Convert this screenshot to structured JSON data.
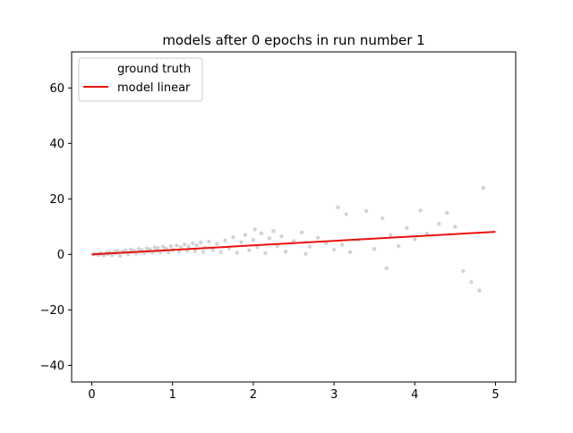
{
  "chart_data": {
    "type": "scatter",
    "title": "models after 0 epochs in run number 1",
    "xlabel": "",
    "ylabel": "",
    "xlim": [
      -0.25,
      5.25
    ],
    "ylim": [
      -46,
      73
    ],
    "xticks": [
      0,
      1,
      2,
      3,
      4,
      5
    ],
    "yticks": [
      -40,
      -20,
      0,
      20,
      40,
      60
    ],
    "grid": false,
    "legend": {
      "placement": "top-left",
      "entries": [
        "ground truth",
        "model linear"
      ]
    },
    "series": [
      {
        "name": "ground truth",
        "kind": "scatter",
        "color": "#c8c8c8",
        "points": [
          [
            0.02,
            0.0
          ],
          [
            0.05,
            0.3
          ],
          [
            0.08,
            -0.2
          ],
          [
            0.1,
            0.5
          ],
          [
            0.12,
            0.2
          ],
          [
            0.15,
            -0.4
          ],
          [
            0.18,
            0.6
          ],
          [
            0.2,
            0.1
          ],
          [
            0.22,
            0.9
          ],
          [
            0.25,
            -0.3
          ],
          [
            0.28,
            1.0
          ],
          [
            0.3,
            0.4
          ],
          [
            0.32,
            1.3
          ],
          [
            0.35,
            -0.5
          ],
          [
            0.38,
            1.1
          ],
          [
            0.4,
            0.6
          ],
          [
            0.42,
            1.5
          ],
          [
            0.45,
            0.0
          ],
          [
            0.48,
            1.8
          ],
          [
            0.5,
            0.8
          ],
          [
            0.52,
            1.4
          ],
          [
            0.55,
            0.3
          ],
          [
            0.58,
            2.0
          ],
          [
            0.6,
            0.9
          ],
          [
            0.62,
            1.6
          ],
          [
            0.65,
            0.5
          ],
          [
            0.68,
            2.2
          ],
          [
            0.7,
            1.1
          ],
          [
            0.72,
            1.9
          ],
          [
            0.75,
            0.6
          ],
          [
            0.78,
            2.5
          ],
          [
            0.8,
            1.2
          ],
          [
            0.82,
            2.3
          ],
          [
            0.85,
            0.8
          ],
          [
            0.88,
            2.8
          ],
          [
            0.9,
            1.4
          ],
          [
            0.92,
            2.1
          ],
          [
            0.95,
            0.7
          ],
          [
            0.98,
            3.0
          ],
          [
            1.0,
            1.6
          ],
          [
            1.05,
            3.2
          ],
          [
            1.08,
            1.0
          ],
          [
            1.1,
            2.6
          ],
          [
            1.15,
            3.6
          ],
          [
            1.18,
            1.4
          ],
          [
            1.2,
            2.9
          ],
          [
            1.25,
            4.0
          ],
          [
            1.28,
            1.2
          ],
          [
            1.3,
            3.3
          ],
          [
            1.35,
            4.3
          ],
          [
            1.38,
            0.9
          ],
          [
            1.4,
            2.5
          ],
          [
            1.45,
            4.6
          ],
          [
            1.5,
            1.6
          ],
          [
            1.55,
            3.8
          ],
          [
            1.6,
            0.8
          ],
          [
            1.65,
            5.0
          ],
          [
            1.7,
            2.2
          ],
          [
            1.75,
            6.2
          ],
          [
            1.8,
            0.6
          ],
          [
            1.85,
            4.4
          ],
          [
            1.9,
            7.0
          ],
          [
            1.95,
            1.5
          ],
          [
            2.0,
            5.2
          ],
          [
            2.02,
            9.0
          ],
          [
            2.05,
            2.6
          ],
          [
            2.1,
            7.6
          ],
          [
            2.15,
            0.5
          ],
          [
            2.2,
            5.8
          ],
          [
            2.25,
            8.4
          ],
          [
            2.3,
            3.0
          ],
          [
            2.35,
            6.5
          ],
          [
            2.4,
            1.0
          ],
          [
            2.5,
            4.8
          ],
          [
            2.6,
            7.9
          ],
          [
            2.65,
            0.2
          ],
          [
            2.7,
            2.8
          ],
          [
            2.8,
            6.0
          ],
          [
            2.9,
            4.0
          ],
          [
            3.0,
            1.8
          ],
          [
            3.05,
            17.0
          ],
          [
            3.1,
            3.5
          ],
          [
            3.15,
            14.5
          ],
          [
            3.2,
            0.8
          ],
          [
            3.3,
            5.2
          ],
          [
            3.4,
            15.6
          ],
          [
            3.5,
            2.0
          ],
          [
            3.6,
            13.0
          ],
          [
            3.65,
            -5.0
          ],
          [
            3.7,
            7.0
          ],
          [
            3.8,
            3.0
          ],
          [
            3.9,
            9.5
          ],
          [
            4.0,
            5.5
          ],
          [
            4.07,
            15.8
          ],
          [
            4.15,
            7.5
          ],
          [
            4.3,
            11.0
          ],
          [
            4.4,
            15.0
          ],
          [
            4.5,
            10.0
          ],
          [
            4.6,
            -6.0
          ],
          [
            4.7,
            -10.0
          ],
          [
            4.8,
            -13.0
          ],
          [
            4.85,
            24.0
          ]
        ]
      },
      {
        "name": "model linear",
        "kind": "line",
        "color": "#e8120c",
        "points": [
          [
            0.0,
            0.0
          ],
          [
            5.0,
            8.15
          ]
        ]
      }
    ]
  }
}
